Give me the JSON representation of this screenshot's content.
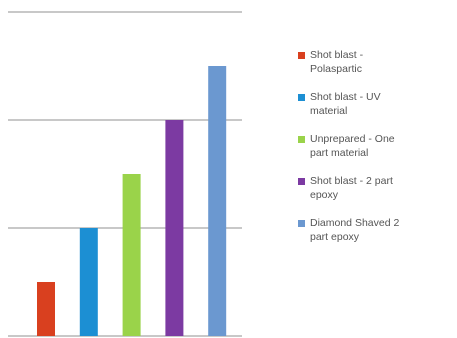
{
  "chart_data": {
    "type": "bar",
    "title": "",
    "xlabel": "",
    "ylabel": "",
    "ylim": [
      0,
      6
    ],
    "grid": true,
    "legend_position": "right",
    "series": [
      {
        "name": "Shot blast - Polaspartic",
        "value": 1,
        "color": "#d9401f"
      },
      {
        "name": "Shot blast - UV material",
        "value": 2,
        "color": "#1c8fd3"
      },
      {
        "name": "Unprepared - One part material",
        "value": 3,
        "color": "#9ad34a"
      },
      {
        "name": "Shot blast - 2 part epoxy",
        "value": 4,
        "color": "#7c3aa2"
      },
      {
        "name": "Diamond Shaved 2 part epoxy",
        "value": 5,
        "color": "#6b98d0"
      }
    ]
  },
  "legend": {
    "items": [
      {
        "lines": [
          "Shot blast -",
          "Polaspartic"
        ]
      },
      {
        "lines": [
          "Shot blast - UV",
          "material"
        ]
      },
      {
        "lines": [
          "Unprepared - One",
          "part material"
        ]
      },
      {
        "lines": [
          "Shot blast - 2 part",
          "epoxy"
        ]
      },
      {
        "lines": [
          "Diamond Shaved 2",
          "part epoxy"
        ]
      }
    ]
  }
}
